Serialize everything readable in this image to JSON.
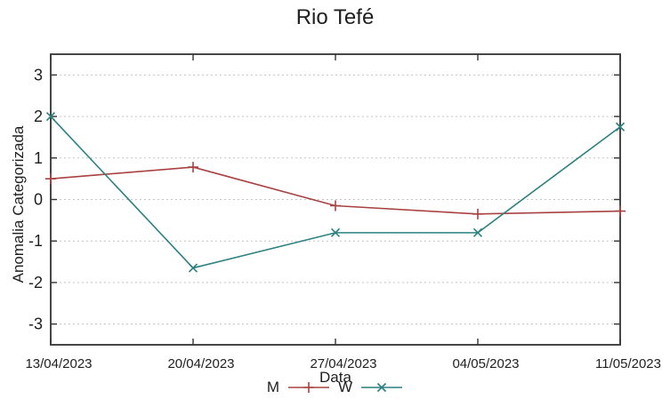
{
  "title": "Rio Tefé",
  "colors": {
    "background": "#ffffff",
    "text": "#1f1f1f",
    "border": "#333333",
    "grid": "#bdbdbd",
    "series_m": "#a94141",
    "series_w": "#2b8180"
  },
  "chart_data": {
    "type": "line",
    "title": "Rio Tefé",
    "xlabel": "Data",
    "ylabel": "Anomalia Categorizada",
    "categories": [
      "13/04/2023",
      "20/04/2023",
      "27/04/2023",
      "04/05/2023",
      "11/05/2023"
    ],
    "series": [
      {
        "name": "M",
        "color": "#a94141",
        "marker": "plus",
        "values": [
          0.5,
          0.78,
          -0.15,
          -0.35,
          -0.28
        ]
      },
      {
        "name": "W",
        "color": "#2b8180",
        "marker": "cross",
        "values": [
          2.0,
          -1.65,
          -0.8,
          -0.8,
          1.75
        ]
      }
    ],
    "ylim": [
      -3.5,
      3.5
    ],
    "yticks": [
      -3,
      -2,
      -1,
      0,
      1,
      2,
      3
    ],
    "grid": "horizontal-dotted",
    "legend_position": "bottom-center"
  }
}
